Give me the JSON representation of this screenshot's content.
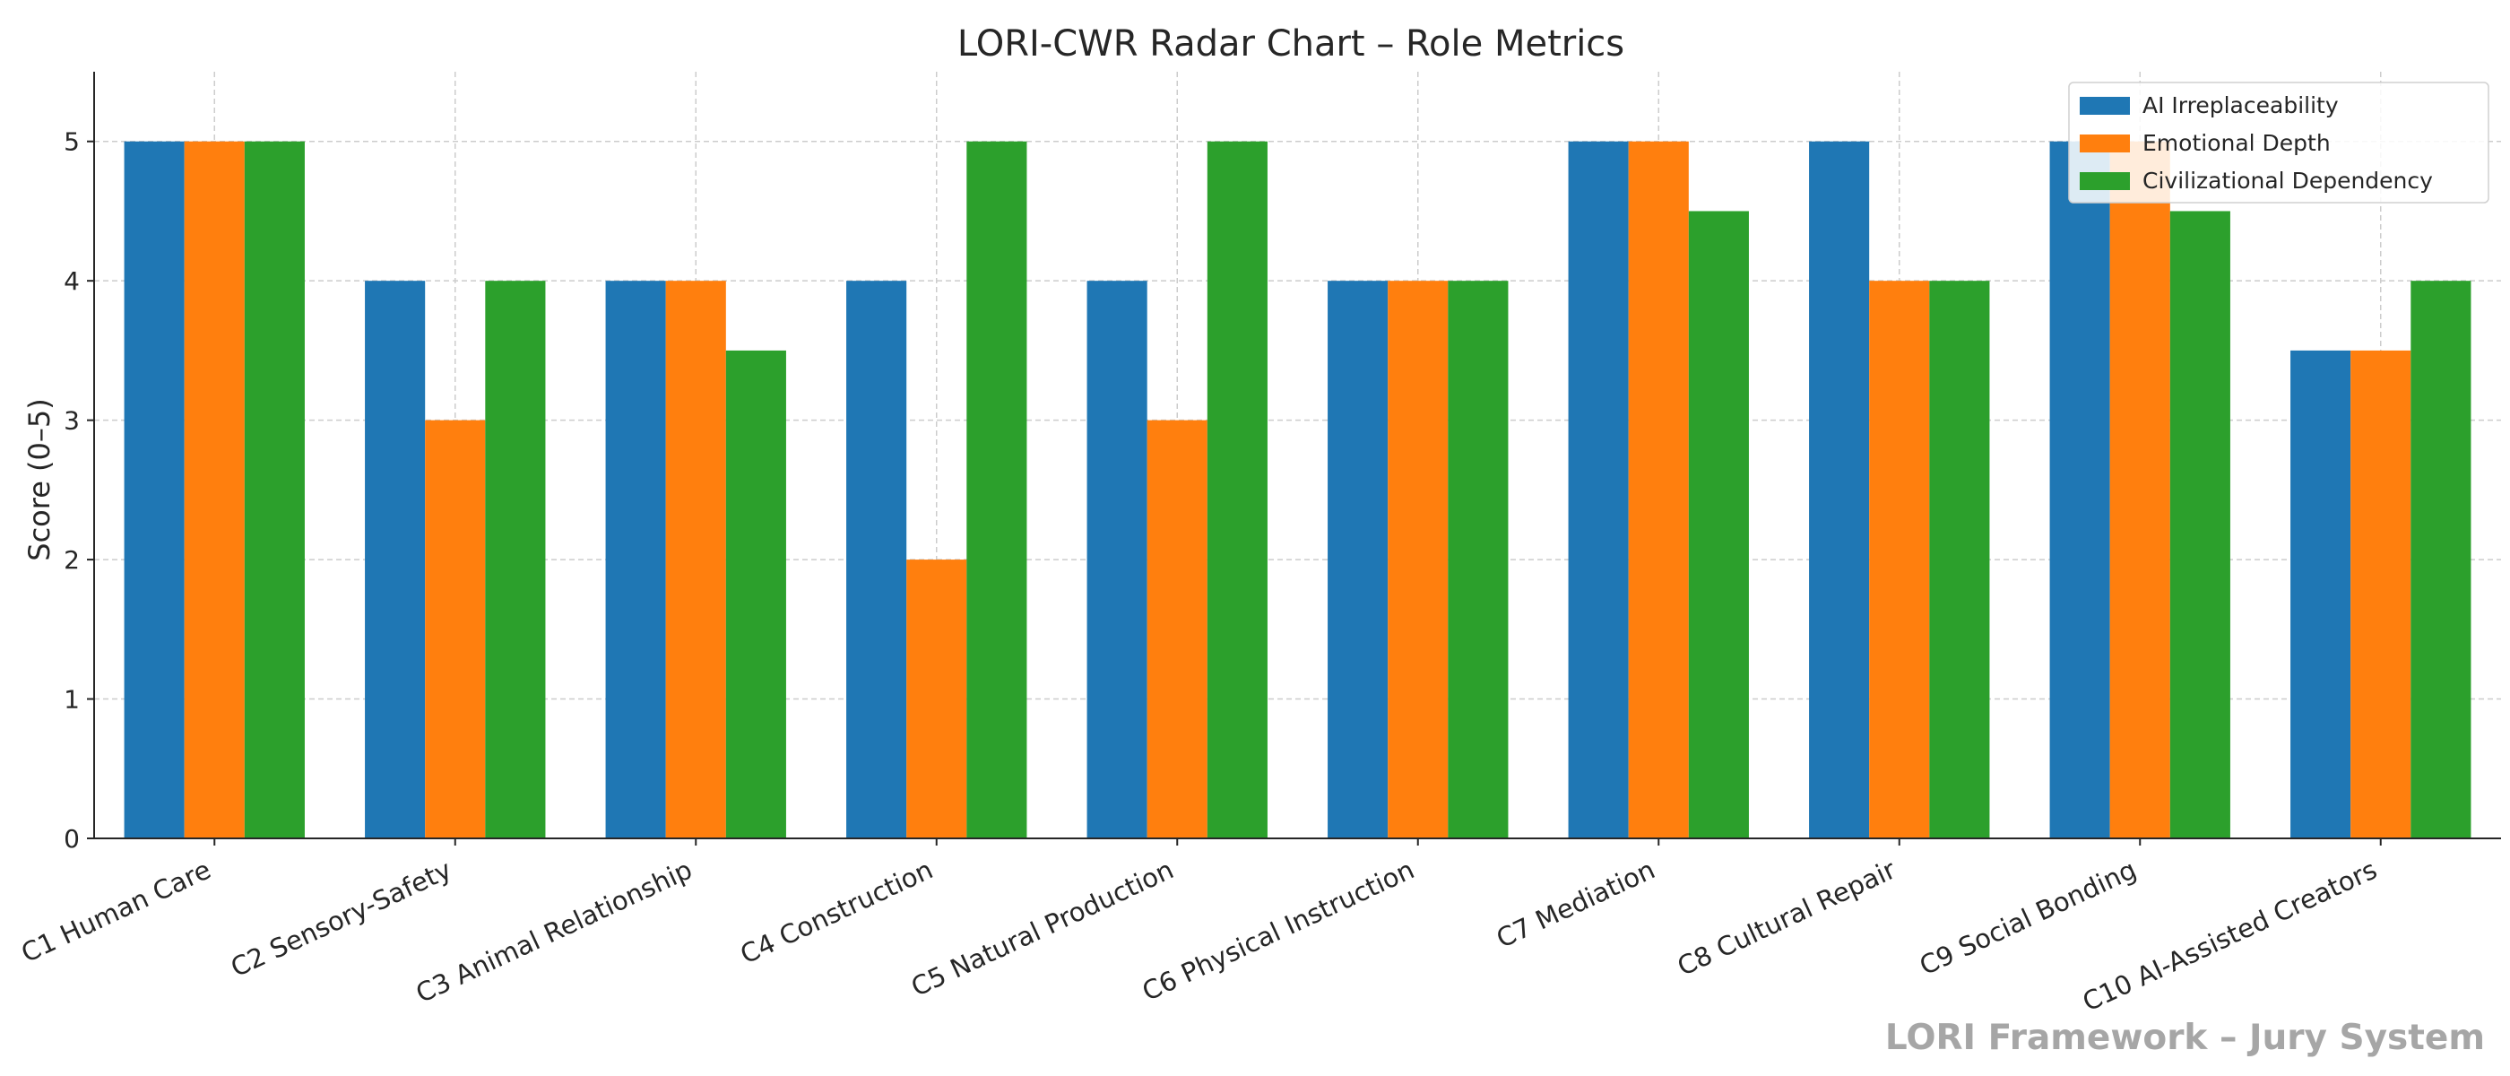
{
  "chart_data": {
    "type": "bar",
    "title": "LORI-CWR Radar Chart – Role Metrics",
    "xlabel": "",
    "ylabel": "Score (0–5)",
    "ylim": [
      0,
      5.5
    ],
    "yticks": [
      0,
      1,
      2,
      3,
      4,
      5
    ],
    "grid": true,
    "legend_position": "top-right",
    "categories": [
      "C1 Human Care",
      "C2 Sensory-Safety",
      "C3 Animal Relationship",
      "C4 Construction",
      "C5 Natural Production",
      "C6 Physical Instruction",
      "C7 Mediation",
      "C8 Cultural Repair",
      "C9 Social Bonding",
      "C10 AI-Assisted Creators"
    ],
    "series": [
      {
        "name": "AI Irreplaceability",
        "color": "#1f77b4",
        "values": [
          5,
          4,
          4,
          4,
          4,
          4,
          5,
          5,
          5,
          3.5
        ]
      },
      {
        "name": "Emotional Depth",
        "color": "#ff7f0e",
        "values": [
          5,
          3,
          4,
          2,
          3,
          4,
          5,
          4,
          5,
          3.5
        ]
      },
      {
        "name": "Civilizational Dependency",
        "color": "#2ca02c",
        "values": [
          5,
          4,
          3.5,
          5,
          5,
          4,
          4.5,
          4,
          4.5,
          4
        ]
      }
    ]
  },
  "watermark": "LORI Framework – Jury System"
}
